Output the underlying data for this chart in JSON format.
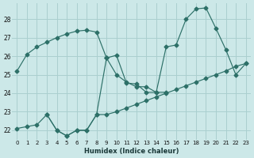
{
  "xlabel": "Humidex (Indice chaleur)",
  "bg_color": "#cce8e8",
  "grid_color": "#aacfcf",
  "line_color": "#2d7068",
  "xlim": [
    -0.5,
    23.5
  ],
  "ylim": [
    21.5,
    28.85
  ],
  "yticks": [
    22,
    23,
    24,
    25,
    26,
    27,
    28
  ],
  "xticks": [
    0,
    1,
    2,
    3,
    4,
    5,
    6,
    7,
    8,
    9,
    10,
    11,
    12,
    13,
    14,
    15,
    16,
    17,
    18,
    19,
    20,
    21,
    22,
    23
  ],
  "lineA_x": [
    0,
    1,
    2,
    3,
    4,
    5,
    6,
    7,
    8,
    9,
    10,
    11,
    12,
    13,
    14,
    15,
    16,
    17,
    18,
    19,
    20,
    21,
    22,
    23
  ],
  "lineA_y": [
    25.2,
    26.1,
    26.5,
    26.75,
    27.0,
    27.2,
    27.35,
    27.4,
    27.3,
    25.9,
    26.05,
    24.55,
    24.5,
    24.05,
    24.05,
    26.5,
    26.6,
    28.0,
    28.55,
    28.6,
    27.5,
    26.35,
    25.0,
    25.6
  ],
  "lineB_x": [
    0,
    1,
    2,
    3,
    4,
    5,
    6,
    7,
    8,
    9,
    10,
    11,
    12,
    13,
    14,
    15,
    16,
    17,
    18,
    19,
    20,
    21,
    22,
    23
  ],
  "lineB_y": [
    22.1,
    22.2,
    22.3,
    22.85,
    22.0,
    21.7,
    22.0,
    22.0,
    22.85,
    22.85,
    23.0,
    23.2,
    23.4,
    23.6,
    23.8,
    24.0,
    24.2,
    24.4,
    24.6,
    24.8,
    25.0,
    25.2,
    25.45,
    25.6
  ],
  "lineC_x": [
    3,
    4,
    5,
    6,
    7,
    8,
    9
  ],
  "lineC_y": [
    22.85,
    22.0,
    21.7,
    22.0,
    22.0,
    22.85,
    25.9
  ],
  "lineD_x": [
    9,
    10,
    11,
    12,
    13,
    14,
    15
  ],
  "lineD_y": [
    25.9,
    25.0,
    24.6,
    24.35,
    24.35,
    24.05,
    24.05
  ]
}
